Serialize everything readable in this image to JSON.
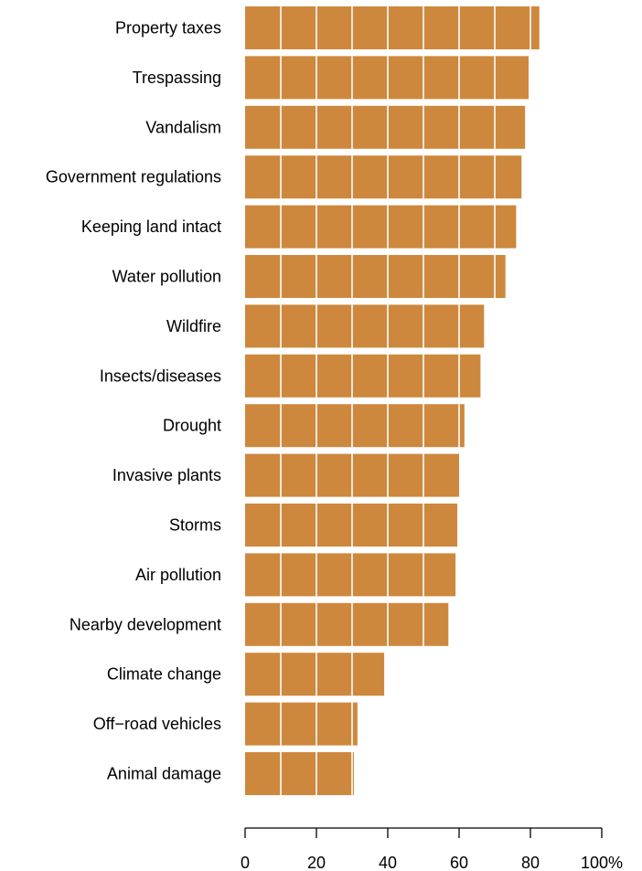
{
  "chart_data": {
    "type": "bar",
    "orientation": "horizontal",
    "categories": [
      "Property taxes",
      "Trespassing",
      "Vandalism",
      "Government regulations",
      "Keeping land intact",
      "Water pollution",
      "Wildfire",
      "Insects/diseases",
      "Drought",
      "Invasive plants",
      "Storms",
      "Air pollution",
      "Nearby development",
      "Climate change",
      "Off−road vehicles",
      "Animal damage"
    ],
    "values": [
      82.5,
      79.5,
      78.5,
      77.5,
      76,
      73,
      67,
      66,
      61.5,
      60,
      59.5,
      59,
      57,
      39,
      31.5,
      30.5
    ],
    "xlim": [
      0,
      100
    ],
    "x_ticks": [
      "0",
      "20",
      "40",
      "60",
      "80",
      "100%"
    ],
    "x_tick_values": [
      0,
      20,
      40,
      60,
      80,
      100
    ],
    "gridlines": [
      10,
      20,
      30,
      40,
      50,
      60,
      70,
      80
    ],
    "bar_color": "#cd883d",
    "grid_color": "#ffffff",
    "title": "",
    "xlabel": "",
    "ylabel": ""
  }
}
